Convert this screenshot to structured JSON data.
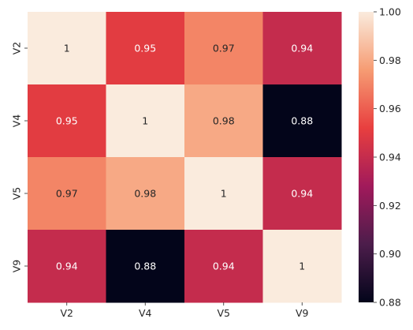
{
  "chart_data": {
    "type": "heatmap",
    "title": "",
    "xlabel": "",
    "ylabel": "",
    "x_labels": [
      "V2",
      "V4",
      "V5",
      "V9"
    ],
    "y_labels": [
      "V2",
      "V4",
      "V5",
      "V9"
    ],
    "values": [
      [
        1,
        0.95,
        0.97,
        0.94
      ],
      [
        0.95,
        1,
        0.98,
        0.88
      ],
      [
        0.97,
        0.98,
        1,
        0.94
      ],
      [
        0.94,
        0.88,
        0.94,
        1
      ]
    ],
    "annotations": [
      [
        "1",
        "0.95",
        "0.97",
        "0.94"
      ],
      [
        "0.95",
        "1",
        "0.98",
        "0.88"
      ],
      [
        "0.97",
        "0.98",
        "1",
        "0.94"
      ],
      [
        "0.94",
        "0.88",
        "0.94",
        "1"
      ]
    ],
    "colorbar": {
      "min": 0.88,
      "max": 1.0,
      "ticks": [
        0.88,
        0.9,
        0.92,
        0.94,
        0.96,
        0.98,
        1.0
      ],
      "tick_labels": [
        "0.88",
        "0.90",
        "0.92",
        "0.94",
        "0.96",
        "0.98",
        "1.00"
      ],
      "colormap": "rocket"
    },
    "grid": false,
    "colors": {
      "stops": [
        "#03051a",
        "#4c1d4b",
        "#a11a5b",
        "#e83f3f",
        "#f69c73",
        "#faebdd"
      ],
      "text_light": "#ffffff",
      "text_dark": "#262626"
    }
  }
}
